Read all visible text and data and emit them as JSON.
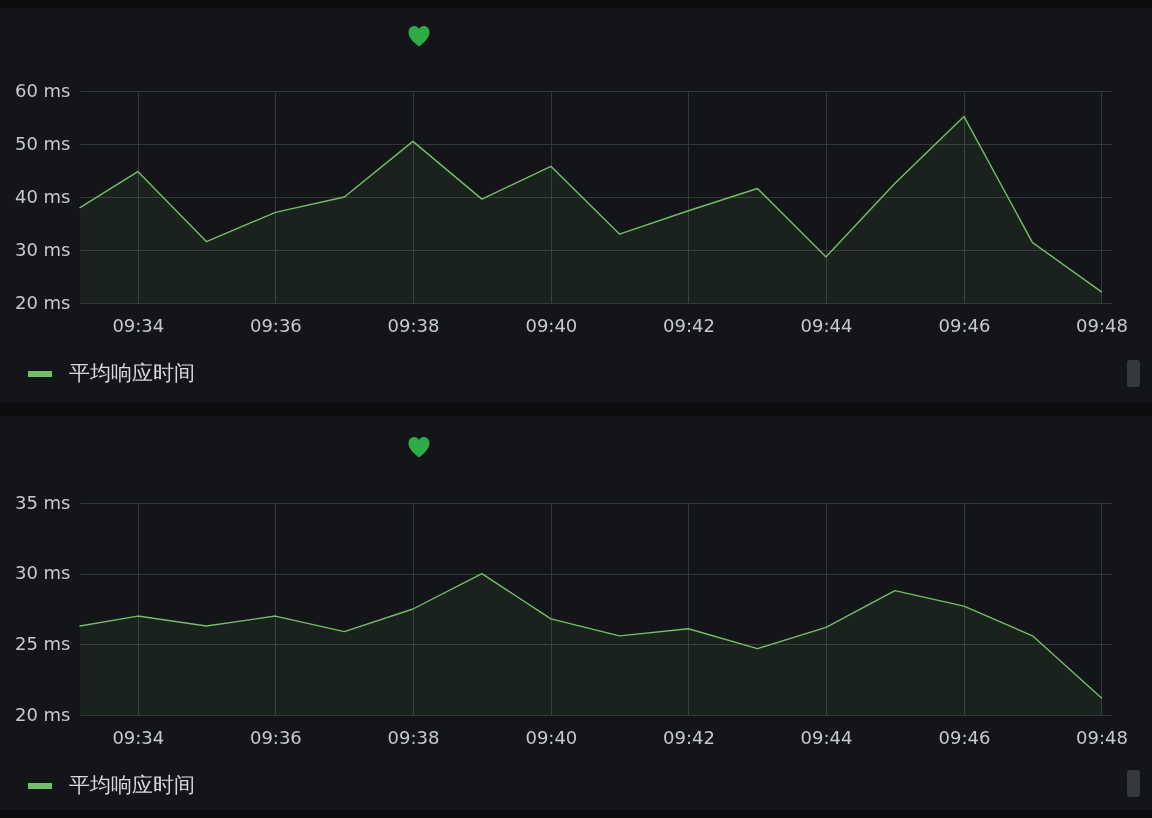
{
  "chart_data": [
    {
      "type": "area",
      "x": [
        9.5527,
        9.5667,
        9.5833,
        9.6,
        9.6167,
        9.6333,
        9.65,
        9.6667,
        9.6833,
        9.7,
        9.7167,
        9.7333,
        9.75,
        9.7667,
        9.7833,
        9.8
      ],
      "series": [
        {
          "name": "平均响应时间",
          "color": "#73bf69",
          "values": [
            38.0,
            44.8,
            31.6,
            37.1,
            40.0,
            50.5,
            39.6,
            45.8,
            33.0,
            37.4,
            41.6,
            28.7,
            42.6,
            55.2,
            31.4,
            22.1
          ]
        }
      ],
      "xlim": [
        9.5527,
        9.8023
      ],
      "xticks": [
        {
          "value": 9.5667,
          "label": "09:34"
        },
        {
          "value": 9.6,
          "label": "09:36"
        },
        {
          "value": 9.6333,
          "label": "09:38"
        },
        {
          "value": 9.6667,
          "label": "09:40"
        },
        {
          "value": 9.7,
          "label": "09:42"
        },
        {
          "value": 9.7333,
          "label": "09:44"
        },
        {
          "value": 9.7667,
          "label": "09:46"
        },
        {
          "value": 9.8,
          "label": "09:48"
        }
      ],
      "ylim": [
        20,
        60
      ],
      "yticks": [
        {
          "value": 20,
          "label": "20 ms"
        },
        {
          "value": 30,
          "label": "30 ms"
        },
        {
          "value": 40,
          "label": "40 ms"
        },
        {
          "value": 50,
          "label": "50 ms"
        },
        {
          "value": 60,
          "label": "60 ms"
        }
      ],
      "grid": true,
      "legend": "bottom left"
    },
    {
      "type": "area",
      "x": [
        9.5527,
        9.5667,
        9.5833,
        9.6,
        9.6167,
        9.6333,
        9.65,
        9.6667,
        9.6833,
        9.7,
        9.7167,
        9.7333,
        9.75,
        9.7667,
        9.7833,
        9.8
      ],
      "series": [
        {
          "name": "平均响应时间",
          "color": "#73bf69",
          "values": [
            26.3,
            27.0,
            26.3,
            27.0,
            25.9,
            27.5,
            30.0,
            26.8,
            25.6,
            26.1,
            24.7,
            26.2,
            28.8,
            27.7,
            25.6,
            21.2
          ]
        }
      ],
      "xlim": [
        9.5527,
        9.8023
      ],
      "xticks": [
        {
          "value": 9.5667,
          "label": "09:34"
        },
        {
          "value": 9.6,
          "label": "09:36"
        },
        {
          "value": 9.6333,
          "label": "09:38"
        },
        {
          "value": 9.6667,
          "label": "09:40"
        },
        {
          "value": 9.7,
          "label": "09:42"
        },
        {
          "value": 9.7333,
          "label": "09:44"
        },
        {
          "value": 9.7667,
          "label": "09:46"
        },
        {
          "value": 9.8,
          "label": "09:48"
        }
      ],
      "ylim": [
        20,
        35
      ],
      "yticks": [
        {
          "value": 20,
          "label": "20 ms"
        },
        {
          "value": 25,
          "label": "25 ms"
        },
        {
          "value": 30,
          "label": "30 ms"
        },
        {
          "value": 35,
          "label": "35 ms"
        }
      ],
      "grid": true,
      "legend": "bottom left"
    }
  ]
}
